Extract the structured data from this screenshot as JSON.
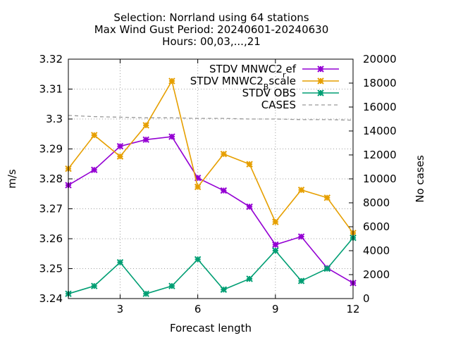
{
  "chart_data": {
    "type": "line",
    "title_lines": [
      "Selection: Norrland using    64 stations",
      "Max Wind Gust   Period: 20240601-20240630",
      "Hours: 00,03,...,21"
    ],
    "xlabel": "Forecast length",
    "ylabel": "m/s",
    "y2label": "No cases",
    "xlim": [
      1,
      12
    ],
    "ylim": [
      3.24,
      3.32
    ],
    "y2lim": [
      0,
      20000
    ],
    "x_ticks": [
      3,
      6,
      9,
      12
    ],
    "y_ticks": [
      3.24,
      3.25,
      3.26,
      3.27,
      3.28,
      3.29,
      3.3,
      3.31,
      3.32
    ],
    "y_tick_labels": [
      "3.24",
      "3.25",
      "3.26",
      "3.27",
      "3.28",
      "3.29",
      "3.3",
      "3.31",
      "3.32"
    ],
    "y2_ticks": [
      0,
      2000,
      4000,
      6000,
      8000,
      10000,
      12000,
      14000,
      16000,
      18000,
      20000
    ],
    "grid": true,
    "legend_position": "top-right",
    "x": [
      1,
      2,
      3,
      4,
      5,
      6,
      7,
      8,
      9,
      10,
      11,
      12
    ],
    "series": [
      {
        "name": "STDV MNWC2_ref",
        "legend_main": "STDV MNWC2",
        "legend_sub": "r",
        "legend_tail": "ef",
        "color": "#9400d3",
        "style": "solid",
        "marker": true,
        "axis": "y",
        "values": [
          3.2779,
          3.283,
          3.2909,
          3.2931,
          3.2941,
          3.2803,
          3.2761,
          3.2707,
          3.258,
          3.2607,
          3.2502,
          3.2452
        ]
      },
      {
        "name": "STDV MNWC2_Bscale",
        "legend_main": "STDV MNWC2",
        "legend_sub": "B",
        "legend_tail": "scale",
        "color": "#e69f00",
        "style": "solid",
        "marker": true,
        "axis": "y",
        "values": [
          3.2834,
          3.2946,
          3.2875,
          3.2979,
          3.3127,
          3.2773,
          3.2883,
          3.2849,
          3.2656,
          3.2763,
          3.2737,
          3.2619
        ]
      },
      {
        "name": "STDV OBS",
        "legend_main": "STDV OBS",
        "legend_sub": "",
        "legend_tail": "",
        "color": "#009e73",
        "style": "solid",
        "marker": true,
        "axis": "y",
        "values": [
          3.2416,
          3.2442,
          3.2521,
          3.2416,
          3.2442,
          3.2531,
          3.243,
          3.2466,
          3.256,
          3.2459,
          3.25,
          3.2603
        ]
      },
      {
        "name": "CASES",
        "legend_main": "CASES",
        "legend_sub": "",
        "legend_tail": "",
        "color": "#999999",
        "style": "dashed",
        "marker": false,
        "axis": "y2",
        "values": [
          15300,
          15200,
          15150,
          15100,
          15100,
          15050,
          15050,
          15000,
          15000,
          14950,
          14950,
          14900
        ]
      }
    ]
  }
}
